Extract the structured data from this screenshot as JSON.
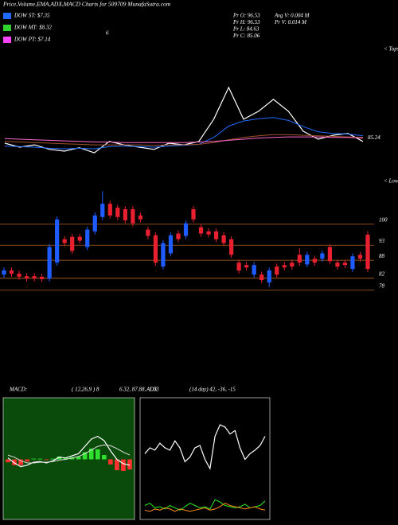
{
  "header": {
    "title": "Price,Volume,EMA,ADX,MACD Charts for 509709 MunafaSutra.com",
    "legend": [
      {
        "label": "DOW ST: $7.35",
        "color": "#1f6bff"
      },
      {
        "label": "DOW MT: $8.32",
        "color": "#2fd12f"
      },
      {
        "label": "DOW PT: $7.14",
        "color": "#ff44ff"
      }
    ],
    "stats": [
      "Pr  O: 96.53",
      "Pr  H: 96.53",
      "Pr  L: 84.63",
      "Pr  C: 85.06",
      "Avg V: 0.004  M",
      "Pr  V: 0.014  M"
    ],
    "marker": "6"
  },
  "chart_data": [
    {
      "type": "line",
      "note": "< Tops",
      "last_value": 85.24,
      "ylim": [
        80,
        100
      ],
      "series": [
        {
          "color": "#ffffff",
          "values": [
            83.5,
            82.8,
            83.2,
            82.4,
            82.1,
            82.7,
            81.8,
            83.8,
            83.2,
            82.8,
            82.4,
            83.5,
            83.2,
            83.8,
            87.7,
            93.3,
            87.7,
            89.1,
            91.2,
            89.1,
            85.6,
            84.2,
            84.9,
            85.2,
            83.8
          ]
        },
        {
          "color": "#1f6bff",
          "values": [
            83.0,
            82.9,
            82.8,
            82.6,
            82.5,
            82.6,
            82.5,
            82.9,
            83.0,
            82.9,
            82.8,
            83.0,
            83.1,
            83.3,
            84.5,
            86.5,
            87.4,
            87.8,
            88.0,
            87.5,
            86.4,
            85.5,
            85.2,
            85.1,
            84.8
          ]
        },
        {
          "color": "#a0522d",
          "values": [
            83.8,
            83.7,
            83.6,
            83.5,
            83.4,
            83.3,
            83.2,
            83.2,
            83.2,
            83.2,
            83.1,
            83.2,
            83.2,
            83.3,
            83.6,
            84.1,
            84.5,
            84.8,
            85.0,
            85.0,
            84.9,
            84.8,
            84.7,
            84.6,
            84.5
          ]
        },
        {
          "color": "#ff66cc",
          "values": [
            84.3,
            84.2,
            84.1,
            84.0,
            83.9,
            83.8,
            83.7,
            83.7,
            83.6,
            83.6,
            83.6,
            83.6,
            83.6,
            83.7,
            83.8,
            84.0,
            84.2,
            84.4,
            84.5,
            84.6,
            84.6,
            84.6,
            84.5,
            84.5,
            84.4
          ]
        }
      ]
    },
    {
      "type": "candlestick",
      "note": "< Lows",
      "ylim": [
        74,
        118.5
      ],
      "yticks": [
        78,
        82,
        88,
        93,
        100
      ],
      "grid": true,
      "grid_color": "#b5651d",
      "up_color": "#1f5cff",
      "down_color": "#e8202f",
      "open": [
        83.2,
        84.6,
        83.5,
        82.7,
        82.7,
        82.5,
        81.9,
        87.2,
        95.0,
        95.8,
        95.8,
        92.4,
        97.6,
        102.4,
        106.8,
        105.5,
        105.0,
        105.0,
        102.9,
        98.2,
        96.3,
        85.9,
        90.3,
        96.9,
        96.1,
        105.0,
        99.0,
        97.6,
        97.6,
        96.3,
        95.0,
        87.2,
        86.4,
        83.2,
        83.2,
        80.6,
        85.9,
        86.4,
        87.2,
        89.8,
        86.6,
        88.5,
        88.5,
        92.4,
        87.2,
        87.2,
        85.1,
        89.8,
        96.5
      ],
      "high": [
        85.6,
        85.6,
        84.5,
        83.7,
        83.7,
        83.5,
        93.4,
        102.6,
        96.0,
        96.8,
        96.8,
        99.2,
        103.9,
        111.0,
        107.8,
        106.5,
        106.0,
        106.0,
        103.9,
        99.2,
        97.3,
        94.7,
        97.3,
        97.9,
        101.3,
        106.0,
        100.0,
        98.6,
        98.6,
        97.3,
        96.0,
        88.2,
        87.4,
        87.4,
        84.2,
        85.6,
        86.9,
        87.4,
        88.2,
        92.0,
        90.8,
        89.5,
        91.3,
        93.4,
        88.2,
        88.2,
        90.3,
        90.8,
        97.6
      ],
      "low": [
        82.2,
        82.5,
        81.5,
        80.9,
        80.9,
        80.7,
        80.9,
        86.2,
        92.7,
        90.1,
        93.5,
        91.4,
        96.6,
        101.4,
        101.9,
        101.4,
        100.3,
        99.3,
        100.6,
        95.1,
        86.2,
        84.9,
        89.3,
        94.0,
        95.1,
        100.6,
        95.9,
        95.6,
        94.0,
        92.7,
        88.8,
        83.6,
        84.6,
        82.2,
        80.4,
        79.0,
        82.2,
        84.6,
        84.9,
        86.2,
        85.6,
        86.2,
        87.5,
        86.7,
        84.9,
        85.4,
        84.1,
        87.5,
        84.1
      ],
      "close": [
        84.6,
        83.5,
        82.5,
        81.9,
        81.9,
        81.7,
        92.4,
        101.6,
        93.7,
        91.1,
        94.5,
        98.2,
        102.9,
        106.8,
        102.9,
        102.4,
        101.3,
        100.3,
        101.6,
        96.1,
        87.2,
        93.7,
        96.3,
        95.0,
        100.3,
        101.6,
        96.9,
        96.6,
        95.0,
        93.7,
        89.8,
        84.6,
        85.6,
        86.4,
        81.4,
        84.6,
        83.2,
        85.6,
        85.9,
        87.2,
        89.8,
        87.2,
        90.3,
        87.7,
        85.9,
        86.4,
        89.3,
        88.5,
        85.1
      ]
    },
    {
      "type": "macd",
      "title": "MACD:",
      "params": "( 12,26,9 ) 8",
      "readout": "6.32, 87.88, -1.53",
      "ylim": [
        -8,
        8
      ],
      "background": "#0a4a0a",
      "pos_color": "#2fe02f",
      "neg_color": "#ff3030",
      "histogram": [
        -0.4,
        -0.8,
        -0.8,
        -0.3,
        0.1,
        0.1,
        -0.1,
        0.1,
        0.4,
        0.2,
        0.3,
        0.4,
        1.0,
        1.5,
        1.4,
        0.6,
        -0.7,
        -1.5,
        -1.6,
        -1.4
      ],
      "series": [
        {
          "color": "#ffffff",
          "values": [
            0.2,
            -0.5,
            -1.0,
            -0.8,
            -0.4,
            -0.3,
            -0.5,
            -0.2,
            0.3,
            0.2,
            0.5,
            0.8,
            1.8,
            2.8,
            3.2,
            2.6,
            1.2,
            0.0,
            -0.6,
            -0.8
          ]
        },
        {
          "color": "#dddddd",
          "values": [
            0.6,
            0.3,
            -0.2,
            -0.5,
            -0.5,
            -0.4,
            -0.4,
            -0.3,
            -0.1,
            0.0,
            0.2,
            0.4,
            0.8,
            1.3,
            1.8,
            2.0,
            1.9,
            1.5,
            1.0,
            0.6
          ]
        }
      ]
    },
    {
      "type": "line",
      "title": "ADX",
      "readout": "(14 day) 42, -36, -15",
      "ylim": [
        0,
        100
      ],
      "border": "#ffffff",
      "series": [
        {
          "color": "#ffffff",
          "values": [
            55,
            60,
            58,
            64,
            60,
            58,
            66,
            60,
            48,
            52,
            60,
            62,
            50,
            42,
            70,
            80,
            78,
            72,
            75,
            60,
            50,
            55,
            58,
            62,
            70
          ]
        },
        {
          "color": "#22ee22",
          "values": [
            10,
            12,
            8,
            9,
            7,
            10,
            8,
            6,
            9,
            12,
            10,
            8,
            9,
            7,
            15,
            13,
            10,
            9,
            8,
            9,
            11,
            8,
            9,
            10,
            14
          ]
        },
        {
          "color": "#ff8c1a",
          "values": [
            6,
            5,
            7,
            6,
            8,
            7,
            5,
            7,
            6,
            5,
            6,
            7,
            8,
            6,
            7,
            9,
            12,
            10,
            9,
            8,
            7,
            8,
            9,
            7,
            6
          ]
        }
      ]
    }
  ]
}
